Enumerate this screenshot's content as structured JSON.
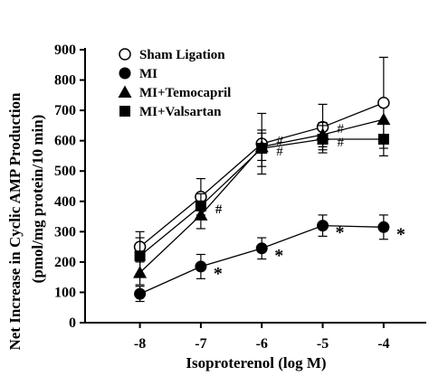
{
  "chart_data": {
    "type": "line",
    "xlabel": "Isoproterenol (log M)",
    "ylabel_line1": "Net Increase in Cyclic AMP Production",
    "ylabel_line2": "(pmol/mg protein/10 min)",
    "x": [
      -8,
      -7,
      -6,
      -5,
      -4
    ],
    "x_tick_labels": [
      "-8",
      "-7",
      "-6",
      "-5",
      "-4"
    ],
    "xlim": [
      -8.9,
      -3.3
    ],
    "ylim": [
      0,
      900
    ],
    "y_ticks": [
      0,
      100,
      200,
      300,
      400,
      500,
      600,
      700,
      800,
      900
    ],
    "grid": false,
    "legend_position": "top-left",
    "series": [
      {
        "name": "Sham Ligation",
        "marker": "open-circle",
        "values": [
          250,
          415,
          590,
          645,
          725
        ],
        "errors": [
          50,
          60,
          100,
          75,
          150
        ],
        "annotations": [
          "",
          "",
          "",
          "",
          ""
        ]
      },
      {
        "name": "MI",
        "marker": "filled-circle",
        "values": [
          95,
          185,
          245,
          320,
          315
        ],
        "errors": [
          25,
          40,
          35,
          35,
          40
        ],
        "annotations": [
          "",
          "*",
          "*",
          "*",
          "*"
        ]
      },
      {
        "name": "MI+Temocapril",
        "marker": "filled-triangle",
        "values": [
          165,
          355,
          580,
          620,
          670
        ],
        "errors": [
          40,
          45,
          45,
          40,
          0
        ],
        "annotations": [
          "",
          "#",
          "#",
          "#",
          ""
        ]
      },
      {
        "name": "MI+Valsartan",
        "marker": "filled-square",
        "values": [
          220,
          385,
          575,
          605,
          605
        ],
        "errors": [
          60,
          40,
          60,
          45,
          55
        ],
        "annotations": [
          "",
          "#",
          "#",
          "#",
          ""
        ]
      }
    ]
  }
}
